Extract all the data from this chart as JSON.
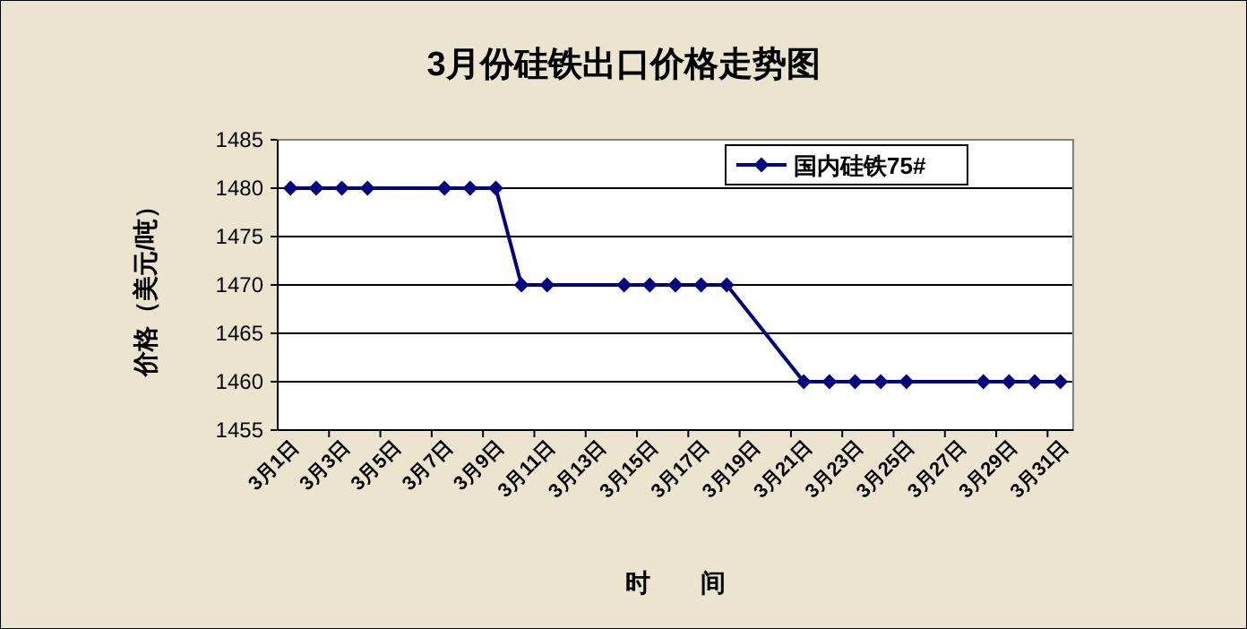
{
  "chart_data": {
    "type": "line",
    "title": "3月份硅铁出口价格走势图",
    "xlabel": "时　　间",
    "ylabel": "价格（美元/吨）",
    "categories": [
      "3月1日",
      null,
      "3月3日",
      null,
      "3月5日",
      null,
      "3月7日",
      null,
      "3月9日",
      null,
      "3月11日",
      null,
      "3月13日",
      null,
      "3月15日",
      null,
      "3月17日",
      null,
      "3月19日",
      null,
      "3月21日",
      null,
      "3月23日",
      null,
      "3月25日",
      null,
      "3月27日",
      null,
      "3月29日",
      null,
      "3月31日"
    ],
    "series": [
      {
        "name": "国内硅铁75#",
        "color": "#000080",
        "values": [
          1480,
          1480,
          1480,
          1480,
          null,
          null,
          1480,
          1480,
          1480,
          1470,
          1470,
          null,
          null,
          1470,
          1470,
          1470,
          1470,
          1470,
          null,
          null,
          1460,
          1460,
          1460,
          1460,
          1460,
          null,
          null,
          1460,
          1460,
          1460,
          1460
        ]
      }
    ],
    "ylim": [
      1455,
      1485
    ],
    "yticks": [
      1455,
      1460,
      1465,
      1470,
      1475,
      1480,
      1485
    ],
    "grid": "y",
    "legend": "top right",
    "marker": "diamond",
    "line_style": "solid"
  }
}
